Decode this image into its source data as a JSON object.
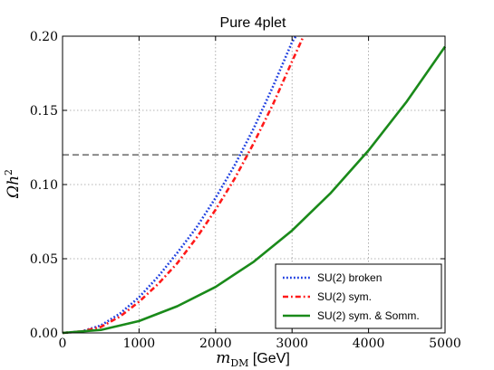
{
  "chart_data": {
    "type": "line",
    "title": "Pure 4plet",
    "xlabel": {
      "math": "m",
      "sub": "DM",
      "unit": " [GeV]"
    },
    "ylabel": {
      "math": "Ωh",
      "sup": "2"
    },
    "xlim": [
      0,
      5000
    ],
    "ylim": [
      0,
      0.2
    ],
    "x_ticks": [
      "0",
      "1000",
      "2000",
      "3000",
      "4000",
      "5000"
    ],
    "y_ticks": [
      "0.00",
      "0.05",
      "0.10",
      "0.15",
      "0.20"
    ],
    "x_tick_values": [
      0,
      1000,
      2000,
      3000,
      4000,
      5000
    ],
    "y_tick_values": [
      0,
      0.05,
      0.1,
      0.15,
      0.2
    ],
    "grid": true,
    "legend_position": "bottom-right",
    "reference_line": {
      "y": 0.12,
      "style": "dashed",
      "color": "#808080"
    },
    "series": [
      {
        "name": "SU(2) broken",
        "color": "#1f3fe0",
        "style": "dotted",
        "x": [
          0,
          250,
          500,
          750,
          1000,
          1250,
          1500,
          1750,
          2000,
          2250,
          2500,
          2750,
          3000,
          3050
        ],
        "y": [
          0.0,
          0.001,
          0.005,
          0.013,
          0.024,
          0.038,
          0.054,
          0.071,
          0.091,
          0.113,
          0.138,
          0.166,
          0.196,
          0.2
        ]
      },
      {
        "name": "SU(2) sym.",
        "color": "#ff1a1a",
        "style": "dashdot",
        "x": [
          0,
          250,
          500,
          750,
          1000,
          1250,
          1500,
          1750,
          2000,
          2250,
          2500,
          2750,
          3000,
          3150
        ],
        "y": [
          0.0,
          0.001,
          0.004,
          0.011,
          0.021,
          0.033,
          0.047,
          0.064,
          0.083,
          0.104,
          0.128,
          0.154,
          0.183,
          0.2
        ]
      },
      {
        "name": "SU(2) sym. & Somm.",
        "color": "#1a8a1a",
        "style": "solid",
        "x": [
          0,
          500,
          1000,
          1500,
          2000,
          2500,
          3000,
          3500,
          4000,
          4500,
          5000
        ],
        "y": [
          0.0,
          0.002,
          0.008,
          0.018,
          0.031,
          0.048,
          0.069,
          0.094,
          0.123,
          0.156,
          0.193
        ]
      }
    ]
  }
}
